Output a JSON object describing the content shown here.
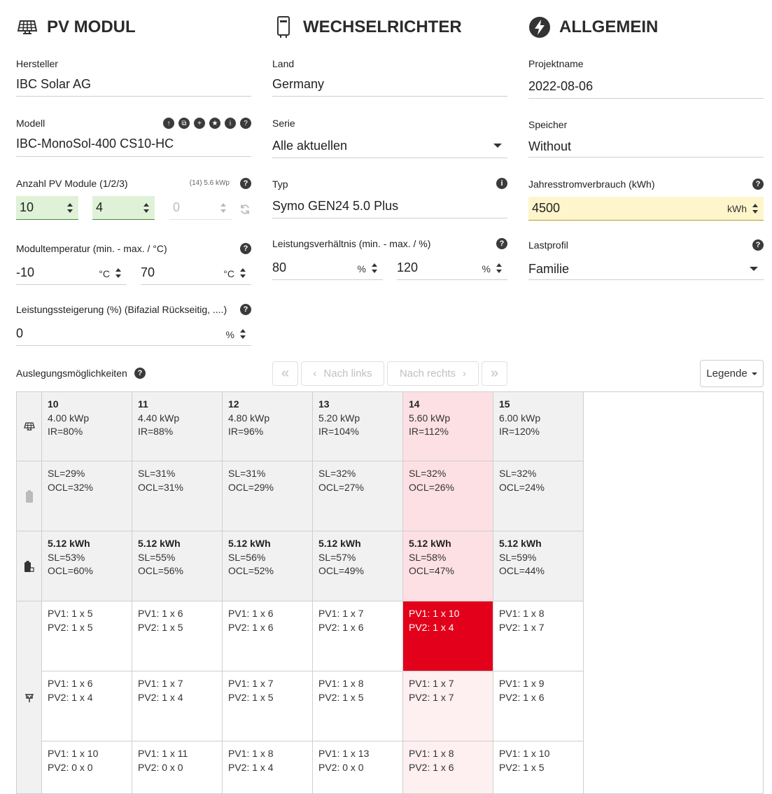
{
  "pv_modul": {
    "title": "PV MODUL",
    "hersteller_label": "Hersteller",
    "hersteller_value": "IBC Solar AG",
    "modell_label": "Modell",
    "modell_value": "IBC-MonoSol-400 CS10-HC",
    "anzahl_label": "Anzahl PV Module (1/2/3)",
    "anzahl_hint": "(14) 5.6 kWp",
    "anzahl_values": [
      "10",
      "4",
      "0"
    ],
    "temp_label": "Modultemperatur (min. - max. / °C)",
    "temp_min": "-10",
    "temp_max": "70",
    "temp_unit": "°C",
    "steigerung_label": "Leistungssteigerung (%) (Bifazial Rückseitig, ....)",
    "steigerung_value": "0",
    "steigerung_unit": "%"
  },
  "wechselrichter": {
    "title": "WECHSELRICHTER",
    "land_label": "Land",
    "land_value": "Germany",
    "serie_label": "Serie",
    "serie_value": "Alle aktuellen",
    "typ_label": "Typ",
    "typ_value": "Symo GEN24 5.0 Plus",
    "verh_label": "Leistungsverhältnis (min. - max. / %)",
    "verh_min": "80",
    "verh_max": "120",
    "verh_unit": "%"
  },
  "allgemein": {
    "title": "ALLGEMEIN",
    "projekt_label": "Projektname",
    "projekt_value": "2022-08-06",
    "speicher_label": "Speicher",
    "speicher_value": "Without",
    "verbrauch_label": "Jahresstromverbrauch (kWh)",
    "verbrauch_value": "4500",
    "verbrauch_unit": "kWh",
    "lastprofil_label": "Lastprofil",
    "lastprofil_value": "Familie"
  },
  "toolbar": {
    "auslegung_label": "Auslegungsmöglichkeiten",
    "first": "«",
    "prev": "Nach links",
    "next": "Nach rechts",
    "last": "»",
    "legende": "Legende"
  },
  "grid": {
    "columns": [
      {
        "n": "10",
        "kwp": "4.00 kWp",
        "ir": "IR=80%",
        "sl": "SL=29%",
        "ocl": "OCL=32%",
        "kwh": "5.12 kWh",
        "sl2": "SL=53%",
        "ocl2": "OCL=60%",
        "pv": [
          [
            "PV1: 1 x 5",
            "PV2: 1 x 5"
          ],
          [
            "PV1: 1 x 6",
            "PV2: 1 x 4"
          ],
          [
            "PV1: 1 x 10",
            "PV2: 0 x 0"
          ]
        ]
      },
      {
        "n": "11",
        "kwp": "4.40 kWp",
        "ir": "IR=88%",
        "sl": "SL=31%",
        "ocl": "OCL=31%",
        "kwh": "5.12 kWh",
        "sl2": "SL=55%",
        "ocl2": "OCL=56%",
        "pv": [
          [
            "PV1: 1 x 6",
            "PV2: 1 x 5"
          ],
          [
            "PV1: 1 x 7",
            "PV2: 1 x 4"
          ],
          [
            "PV1: 1 x 11",
            "PV2: 0 x 0"
          ]
        ]
      },
      {
        "n": "12",
        "kwp": "4.80 kWp",
        "ir": "IR=96%",
        "sl": "SL=31%",
        "ocl": "OCL=29%",
        "kwh": "5.12 kWh",
        "sl2": "SL=56%",
        "ocl2": "OCL=52%",
        "pv": [
          [
            "PV1: 1 x 6",
            "PV2: 1 x 6"
          ],
          [
            "PV1: 1 x 7",
            "PV2: 1 x 5"
          ],
          [
            "PV1: 1 x 8",
            "PV2: 1 x 4"
          ]
        ]
      },
      {
        "n": "13",
        "kwp": "5.20 kWp",
        "ir": "IR=104%",
        "sl": "SL=32%",
        "ocl": "OCL=27%",
        "kwh": "5.12 kWh",
        "sl2": "SL=57%",
        "ocl2": "OCL=49%",
        "pv": [
          [
            "PV1: 1 x 7",
            "PV2: 1 x 6"
          ],
          [
            "PV1: 1 x 8",
            "PV2: 1 x 5"
          ],
          [
            "PV1: 1 x 13",
            "PV2: 0 x 0"
          ]
        ]
      },
      {
        "n": "14",
        "kwp": "5.60 kWp",
        "ir": "IR=112%",
        "sl": "SL=32%",
        "ocl": "OCL=26%",
        "kwh": "5.12 kWh",
        "sl2": "SL=58%",
        "ocl2": "OCL=47%",
        "pv": [
          [
            "PV1: 1 x 10",
            "PV2: 1 x 4"
          ],
          [
            "PV1: 1 x 7",
            "PV2: 1 x 7"
          ],
          [
            "PV1: 1 x 8",
            "PV2: 1 x 6"
          ]
        ]
      },
      {
        "n": "15",
        "kwp": "6.00 kWp",
        "ir": "IR=120%",
        "sl": "SL=32%",
        "ocl": "OCL=24%",
        "kwh": "5.12 kWh",
        "sl2": "SL=59%",
        "ocl2": "OCL=44%",
        "pv": [
          [
            "PV1: 1 x 8",
            "PV2: 1 x 7"
          ],
          [
            "PV1: 1 x 9",
            "PV2: 1 x 6"
          ],
          [
            "PV1: 1 x 10",
            "PV2: 1 x 5"
          ]
        ]
      }
    ]
  },
  "colors": {
    "selected_col": "#fde0e4",
    "selected_cell": "#e3001b",
    "green_input": "#dff2d8",
    "yellow_input": "#fff5cc"
  }
}
